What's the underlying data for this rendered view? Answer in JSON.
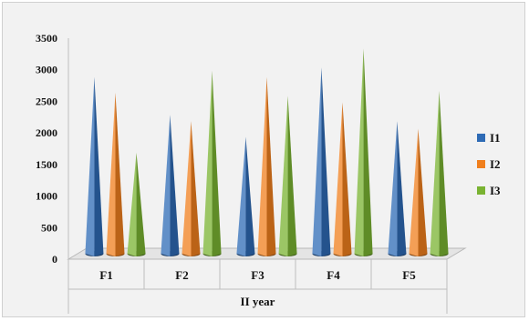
{
  "chart_data": {
    "type": "bar",
    "style": "3d-cone",
    "categories": [
      "F1",
      "F2",
      "F3",
      "F4",
      "F5"
    ],
    "series": [
      {
        "name": "I1",
        "color": "#2e6bb5",
        "values": [
          2800,
          2200,
          1850,
          2950,
          2100
        ]
      },
      {
        "name": "I2",
        "color": "#f07f1d",
        "values": [
          2550,
          2100,
          2800,
          2400,
          1980
        ]
      },
      {
        "name": "I3",
        "color": "#7ab332",
        "values": [
          1600,
          2900,
          2500,
          3250,
          2580
        ]
      }
    ],
    "xlabel": "II year",
    "ylim": [
      0,
      3500
    ],
    "yticks": [
      0,
      500,
      1000,
      1500,
      2000,
      2500,
      3000,
      3500
    ],
    "grid": false,
    "legend": "right"
  }
}
